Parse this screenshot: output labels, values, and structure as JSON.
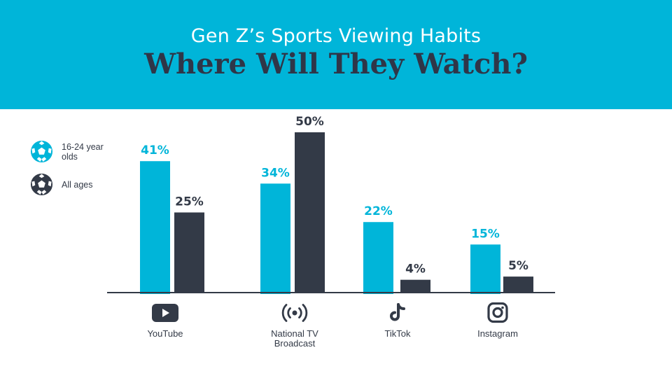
{
  "header": {
    "subtitle": "Gen Z’s Sports Viewing Habits",
    "title": "Where Will They Watch?"
  },
  "legend": [
    {
      "label": "16-24 year olds",
      "color": "#00b5d9",
      "icon": "soccer-ball-icon"
    },
    {
      "label": "All ages",
      "color": "#333a47",
      "icon": "soccer-ball-icon"
    }
  ],
  "colors": {
    "header_bg": "#00b5d9",
    "title": "#2f3648",
    "series1": "#00b5d9",
    "series2": "#333a47"
  },
  "chart_data": {
    "type": "bar",
    "title": "Where Will They Watch?",
    "subtitle": "Gen Z’s Sports Viewing Habits",
    "categories": [
      "YouTube",
      "National TV Broadcast",
      "TikTok",
      "Instagram"
    ],
    "category_icons": [
      "youtube-icon",
      "broadcast-icon",
      "tiktok-icon",
      "instagram-icon"
    ],
    "series": [
      {
        "name": "16-24 year olds",
        "values": [
          41,
          34,
          22,
          15
        ],
        "labels": [
          "41%",
          "34%",
          "22%",
          "15%"
        ]
      },
      {
        "name": "All ages",
        "values": [
          25,
          50,
          4,
          5
        ],
        "labels": [
          "25%",
          "50%",
          "4%",
          "5%"
        ]
      }
    ],
    "unit": "%",
    "ylim": [
      0,
      50
    ],
    "grid": false,
    "legend_position": "left"
  }
}
